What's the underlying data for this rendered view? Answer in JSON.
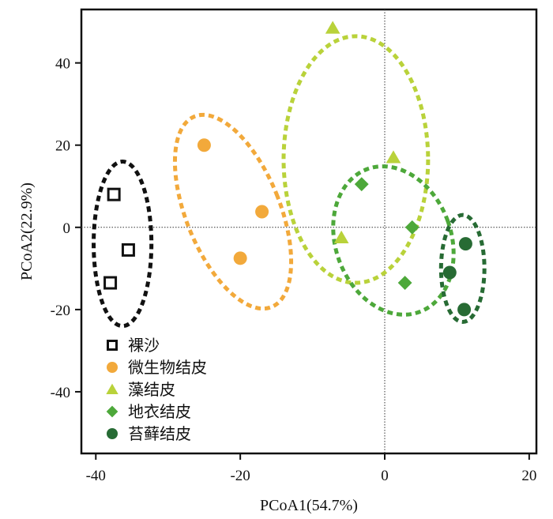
{
  "chart_data": {
    "type": "scatter",
    "xlabel": "PCoA1(54.7%)",
    "ylabel": "PCoA2(22.9%)",
    "xlim": [
      -42,
      21
    ],
    "ylim": [
      -55,
      53
    ],
    "xticks": [
      -40,
      -20,
      0,
      20
    ],
    "yticks": [
      -40,
      -20,
      0,
      20,
      40
    ],
    "reference_lines": {
      "x": 0,
      "y": 0,
      "style": "dotted"
    },
    "legend_position": "bottom-left",
    "series": [
      {
        "name": "裸沙",
        "marker": "open-square",
        "color": "#111111",
        "points": [
          {
            "x": -37.5,
            "y": 8
          },
          {
            "x": -35.5,
            "y": -5.5
          },
          {
            "x": -38,
            "y": -13.5
          }
        ],
        "ellipse": {
          "cx": -36.3,
          "cy": -4,
          "rx": 4,
          "ry": 20,
          "angle": 0
        }
      },
      {
        "name": "微生物结皮",
        "marker": "circle",
        "color": "#F2A93B",
        "points": [
          {
            "x": -25,
            "y": 20
          },
          {
            "x": -17,
            "y": 3.8
          },
          {
            "x": -20,
            "y": -7.5
          }
        ],
        "ellipse": {
          "cx": -21,
          "cy": 3.8,
          "rx": 6.5,
          "ry": 25,
          "angle": -22
        }
      },
      {
        "name": "藻结皮",
        "marker": "triangle",
        "color": "#B9D23A",
        "points": [
          {
            "x": -7.2,
            "y": 48.5
          },
          {
            "x": 1.2,
            "y": 17
          },
          {
            "x": -6,
            "y": -2.5
          }
        ],
        "ellipse": {
          "cx": -4,
          "cy": 16.5,
          "rx": 10,
          "ry": 30,
          "angle": 0
        }
      },
      {
        "name": "地衣结皮",
        "marker": "diamond",
        "color": "#4DA83A",
        "points": [
          {
            "x": -3.2,
            "y": 10.5
          },
          {
            "x": 3.8,
            "y": 0
          },
          {
            "x": 2.8,
            "y": -13.5
          }
        ],
        "ellipse": {
          "cx": 1.2,
          "cy": -3.2,
          "rx": 8,
          "ry": 18.5,
          "angle": -20
        }
      },
      {
        "name": "苔藓结皮",
        "marker": "filled-circle",
        "color": "#276B34",
        "points": [
          {
            "x": 11.2,
            "y": -4
          },
          {
            "x": 9,
            "y": -11
          },
          {
            "x": 11,
            "y": -20
          }
        ],
        "ellipse": {
          "cx": 10.8,
          "cy": -10,
          "rx": 3,
          "ry": 13,
          "angle": 0
        }
      }
    ]
  }
}
